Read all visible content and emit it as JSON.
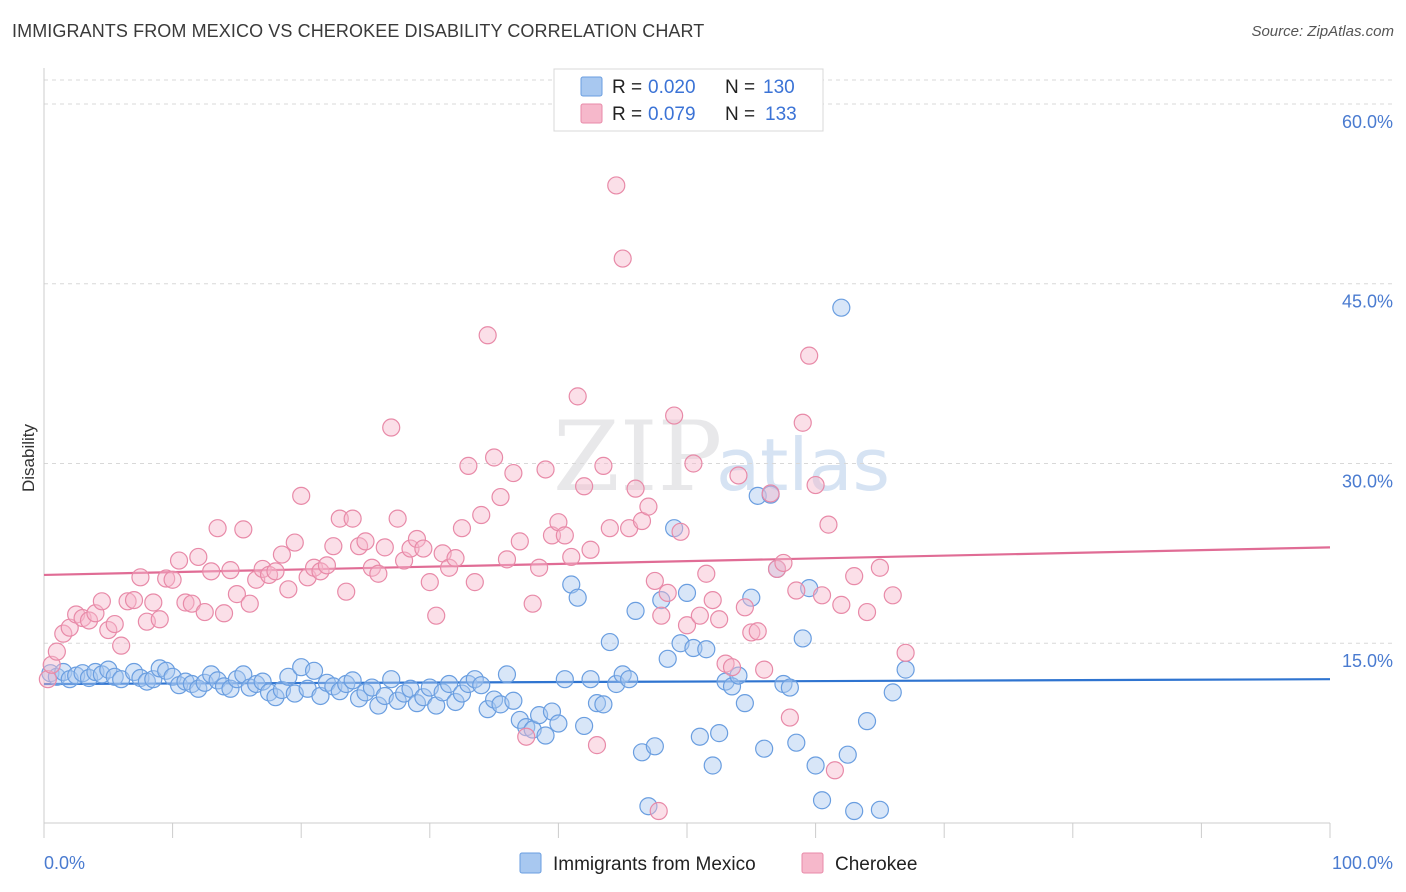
{
  "header": {
    "title": "IMMIGRANTS FROM MEXICO VS CHEROKEE DISABILITY CORRELATION CHART",
    "source": "Source: ZipAtlas.com"
  },
  "watermark": {
    "zip": "ZIP",
    "atlas": "atlas"
  },
  "legend_top": [
    {
      "r_label": "R =",
      "r_value": "0.020",
      "n_label": "N =",
      "n_value": "130"
    },
    {
      "r_label": "R =",
      "r_value": "0.079",
      "n_label": "N =",
      "n_value": "133"
    }
  ],
  "colors": {
    "blue_fill": "#a8c8f0",
    "blue_stroke": "#6a9ee0",
    "blue_line": "#2f74d0",
    "pink_fill": "#f6b8cb",
    "pink_stroke": "#e88aa8",
    "pink_line": "#e06c95",
    "grid": "#d8d8d8",
    "axis_text": "#4a7bd0"
  },
  "chart_data": {
    "type": "scatter",
    "title": "IMMIGRANTS FROM MEXICO VS CHEROKEE DISABILITY CORRELATION CHART",
    "xlabel": "",
    "ylabel": "Disability",
    "xlim": [
      0,
      100
    ],
    "ylim": [
      0,
      62
    ],
    "x_tick_labels": [
      "0.0%",
      "100.0%"
    ],
    "y_ticks": [
      15,
      30,
      45,
      60
    ],
    "y_tick_labels": [
      "15.0%",
      "30.0%",
      "45.0%",
      "60.0%"
    ],
    "grid": true,
    "legend_position": "top-center",
    "series": [
      {
        "name": "Immigrants from Mexico",
        "color": "#a8c8f0",
        "trend": {
          "x": [
            0,
            100
          ],
          "y": [
            11.6,
            12.0
          ]
        },
        "points": [
          [
            0.5,
            12.5
          ],
          [
            1,
            12.2
          ],
          [
            1.5,
            12.6
          ],
          [
            2,
            12.0
          ],
          [
            2.5,
            12.3
          ],
          [
            3,
            12.5
          ],
          [
            3.5,
            12.1
          ],
          [
            4,
            12.6
          ],
          [
            4.5,
            12.4
          ],
          [
            5,
            12.8
          ],
          [
            5.5,
            12.2
          ],
          [
            6,
            12.0
          ],
          [
            7,
            12.6
          ],
          [
            7.5,
            12.1
          ],
          [
            8,
            11.8
          ],
          [
            8.5,
            12.0
          ],
          [
            9,
            12.9
          ],
          [
            9.5,
            12.7
          ],
          [
            10,
            12.2
          ],
          [
            10.5,
            11.5
          ],
          [
            11,
            11.8
          ],
          [
            11.5,
            11.6
          ],
          [
            12,
            11.2
          ],
          [
            12.5,
            11.7
          ],
          [
            13,
            12.4
          ],
          [
            13.5,
            11.9
          ],
          [
            14,
            11.4
          ],
          [
            14.5,
            11.2
          ],
          [
            15,
            12.0
          ],
          [
            15.5,
            12.4
          ],
          [
            16,
            11.3
          ],
          [
            16.5,
            11.6
          ],
          [
            17,
            11.8
          ],
          [
            17.5,
            10.9
          ],
          [
            18,
            10.5
          ],
          [
            18.5,
            11.1
          ],
          [
            19,
            12.2
          ],
          [
            19.5,
            10.8
          ],
          [
            20,
            13.0
          ],
          [
            20.5,
            11.2
          ],
          [
            21,
            12.7
          ],
          [
            21.5,
            10.6
          ],
          [
            22,
            11.7
          ],
          [
            22.5,
            11.4
          ],
          [
            23,
            11.0
          ],
          [
            23.5,
            11.6
          ],
          [
            24,
            11.9
          ],
          [
            24.5,
            10.4
          ],
          [
            25,
            10.9
          ],
          [
            25.5,
            11.3
          ],
          [
            26,
            9.8
          ],
          [
            26.5,
            10.6
          ],
          [
            27,
            12.0
          ],
          [
            27.5,
            10.2
          ],
          [
            28,
            10.8
          ],
          [
            28.5,
            11.2
          ],
          [
            29,
            10.0
          ],
          [
            29.5,
            10.5
          ],
          [
            30,
            11.3
          ],
          [
            30.5,
            9.8
          ],
          [
            31,
            10.9
          ],
          [
            31.5,
            11.6
          ],
          [
            32,
            10.1
          ],
          [
            32.5,
            10.8
          ],
          [
            33,
            11.6
          ],
          [
            33.5,
            12.0
          ],
          [
            34,
            11.5
          ],
          [
            34.5,
            9.5
          ],
          [
            35,
            10.3
          ],
          [
            35.5,
            9.9
          ],
          [
            36,
            12.4
          ],
          [
            36.5,
            10.2
          ],
          [
            37,
            8.6
          ],
          [
            37.5,
            8.0
          ],
          [
            38,
            7.8
          ],
          [
            38.5,
            9.0
          ],
          [
            39,
            7.3
          ],
          [
            39.5,
            9.3
          ],
          [
            40,
            8.3
          ],
          [
            40.5,
            12.0
          ],
          [
            41,
            19.9
          ],
          [
            41.5,
            18.8
          ],
          [
            42,
            8.1
          ],
          [
            42.5,
            12.0
          ],
          [
            43,
            10.0
          ],
          [
            43.5,
            9.9
          ],
          [
            44,
            15.1
          ],
          [
            44.5,
            11.6
          ],
          [
            45,
            12.4
          ],
          [
            45.5,
            12.0
          ],
          [
            46,
            17.7
          ],
          [
            46.5,
            5.9
          ],
          [
            47,
            1.4
          ],
          [
            47.5,
            6.4
          ],
          [
            48,
            18.6
          ],
          [
            48.5,
            13.7
          ],
          [
            49,
            24.6
          ],
          [
            49.5,
            15.0
          ],
          [
            50,
            19.2
          ],
          [
            50.5,
            14.6
          ],
          [
            51,
            7.2
          ],
          [
            51.5,
            14.5
          ],
          [
            52,
            4.8
          ],
          [
            52.5,
            7.5
          ],
          [
            53,
            11.8
          ],
          [
            53.5,
            11.4
          ],
          [
            54,
            12.3
          ],
          [
            54.5,
            10.0
          ],
          [
            55,
            18.8
          ],
          [
            55.5,
            27.3
          ],
          [
            56,
            6.2
          ],
          [
            56.5,
            27.4
          ],
          [
            57,
            21.2
          ],
          [
            57.5,
            11.6
          ],
          [
            58,
            11.3
          ],
          [
            58.5,
            6.7
          ],
          [
            59,
            15.4
          ],
          [
            59.5,
            19.6
          ],
          [
            60,
            4.8
          ],
          [
            60.5,
            1.9
          ],
          [
            62,
            43.0
          ],
          [
            62.5,
            5.7
          ],
          [
            63,
            1.0
          ],
          [
            64,
            8.5
          ],
          [
            65,
            1.1
          ],
          [
            66,
            10.9
          ],
          [
            67,
            12.8
          ]
        ]
      },
      {
        "name": "Cherokee",
        "color": "#f6b8cb",
        "trend": {
          "x": [
            0,
            100
          ],
          "y": [
            20.7,
            23.0
          ]
        },
        "points": [
          [
            0.3,
            12.0
          ],
          [
            0.6,
            13.2
          ],
          [
            1,
            14.3
          ],
          [
            1.5,
            15.8
          ],
          [
            2,
            16.3
          ],
          [
            2.5,
            17.4
          ],
          [
            3,
            17.1
          ],
          [
            3.5,
            16.9
          ],
          [
            4,
            17.5
          ],
          [
            4.5,
            18.5
          ],
          [
            5,
            16.1
          ],
          [
            5.5,
            16.6
          ],
          [
            6,
            14.8
          ],
          [
            6.5,
            18.5
          ],
          [
            7,
            18.6
          ],
          [
            7.5,
            20.5
          ],
          [
            8,
            16.8
          ],
          [
            8.5,
            18.4
          ],
          [
            9,
            17.0
          ],
          [
            9.5,
            20.4
          ],
          [
            10,
            20.3
          ],
          [
            10.5,
            21.9
          ],
          [
            11,
            18.4
          ],
          [
            11.5,
            18.3
          ],
          [
            12,
            22.2
          ],
          [
            12.5,
            17.6
          ],
          [
            13,
            21.0
          ],
          [
            13.5,
            24.6
          ],
          [
            14,
            17.5
          ],
          [
            14.5,
            21.1
          ],
          [
            15,
            19.1
          ],
          [
            15.5,
            24.5
          ],
          [
            16,
            18.3
          ],
          [
            16.5,
            20.3
          ],
          [
            17,
            21.2
          ],
          [
            17.5,
            20.7
          ],
          [
            18,
            21.0
          ],
          [
            18.5,
            22.4
          ],
          [
            19,
            19.5
          ],
          [
            19.5,
            23.4
          ],
          [
            20,
            27.3
          ],
          [
            20.5,
            20.5
          ],
          [
            21,
            21.3
          ],
          [
            21.5,
            21.0
          ],
          [
            22,
            21.5
          ],
          [
            22.5,
            23.1
          ],
          [
            23,
            25.4
          ],
          [
            23.5,
            19.3
          ],
          [
            24,
            25.4
          ],
          [
            24.5,
            23.1
          ],
          [
            25,
            23.5
          ],
          [
            25.5,
            21.3
          ],
          [
            26,
            20.8
          ],
          [
            26.5,
            23.0
          ],
          [
            27,
            33.0
          ],
          [
            27.5,
            25.4
          ],
          [
            28,
            21.9
          ],
          [
            28.5,
            22.9
          ],
          [
            29,
            23.7
          ],
          [
            29.5,
            22.9
          ],
          [
            30,
            20.1
          ],
          [
            30.5,
            17.3
          ],
          [
            31,
            22.5
          ],
          [
            31.5,
            21.3
          ],
          [
            32,
            22.1
          ],
          [
            32.5,
            24.6
          ],
          [
            33,
            29.8
          ],
          [
            33.5,
            20.1
          ],
          [
            34,
            25.7
          ],
          [
            34.5,
            40.7
          ],
          [
            35,
            30.5
          ],
          [
            35.5,
            27.2
          ],
          [
            36,
            22.0
          ],
          [
            36.5,
            29.2
          ],
          [
            37,
            23.5
          ],
          [
            37.5,
            7.2
          ],
          [
            38,
            18.3
          ],
          [
            38.5,
            21.3
          ],
          [
            39,
            29.5
          ],
          [
            39.5,
            24.0
          ],
          [
            40,
            25.1
          ],
          [
            40.5,
            24.0
          ],
          [
            41,
            22.2
          ],
          [
            41.5,
            35.6
          ],
          [
            42,
            28.1
          ],
          [
            42.5,
            22.8
          ],
          [
            43,
            6.5
          ],
          [
            43.5,
            29.8
          ],
          [
            44,
            24.6
          ],
          [
            44.5,
            53.2
          ],
          [
            45,
            47.1
          ],
          [
            45.5,
            24.6
          ],
          [
            46,
            27.9
          ],
          [
            46.5,
            25.2
          ],
          [
            47,
            26.4
          ],
          [
            47.5,
            20.2
          ],
          [
            48,
            17.3
          ],
          [
            48.5,
            19.2
          ],
          [
            49,
            34.0
          ],
          [
            49.5,
            24.3
          ],
          [
            50,
            16.5
          ],
          [
            50.5,
            30.0
          ],
          [
            51,
            17.3
          ],
          [
            51.5,
            20.8
          ],
          [
            52,
            18.6
          ],
          [
            52.5,
            17.0
          ],
          [
            53,
            13.3
          ],
          [
            53.5,
            13.0
          ],
          [
            54,
            29.0
          ],
          [
            54.5,
            18.0
          ],
          [
            55,
            15.9
          ],
          [
            55.5,
            16.0
          ],
          [
            56,
            12.8
          ],
          [
            56.5,
            27.5
          ],
          [
            57,
            21.2
          ],
          [
            57.5,
            21.7
          ],
          [
            58,
            8.8
          ],
          [
            58.5,
            19.4
          ],
          [
            59,
            33.4
          ],
          [
            59.5,
            39.0
          ],
          [
            60,
            28.2
          ],
          [
            60.5,
            19.0
          ],
          [
            61,
            24.9
          ],
          [
            61.5,
            4.4
          ],
          [
            62,
            18.2
          ],
          [
            63,
            20.6
          ],
          [
            64,
            17.6
          ],
          [
            65,
            21.3
          ],
          [
            66,
            19.0
          ],
          [
            67,
            14.2
          ],
          [
            47.8,
            1.0
          ]
        ]
      }
    ]
  },
  "legend_bottom": [
    "Immigrants from Mexico",
    "Cherokee"
  ]
}
